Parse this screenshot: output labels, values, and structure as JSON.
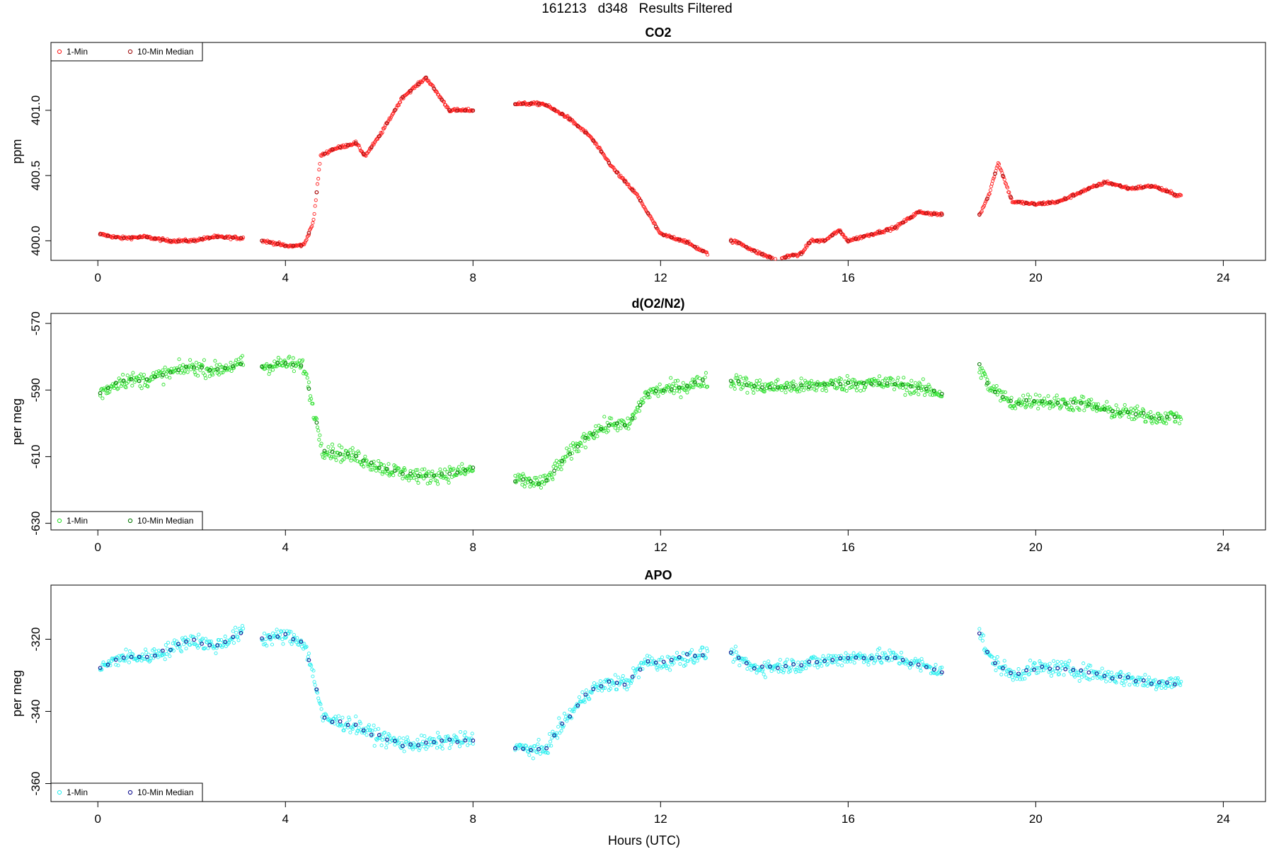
{
  "figure": {
    "title": "161213   d348   Results Filtered",
    "xlabel": "Hours (UTC)"
  },
  "chart_data": [
    {
      "type": "scatter",
      "title": "CO2",
      "ylabel": "ppm",
      "xlim": [
        -1,
        24.9
      ],
      "ylim": [
        399.85,
        401.52
      ],
      "xticks": [
        0,
        4,
        8,
        12,
        16,
        20,
        24
      ],
      "yticks": [
        400.0,
        400.5,
        401.0
      ],
      "ytick_labels": [
        "400.0",
        "400.5",
        "401.0"
      ],
      "legend": {
        "position": "top-left",
        "items": [
          "1-Min",
          "10-Min Median"
        ]
      },
      "colors": {
        "one_min": "#ff2020",
        "median": "#a01010"
      },
      "segments": [
        {
          "x": [
            0.05,
            0.5,
            1.0,
            1.5,
            2.0,
            2.5,
            3.1
          ],
          "y": [
            400.05,
            400.02,
            400.03,
            400.0,
            400.0,
            400.03,
            400.02
          ]
        },
        {
          "x": [
            3.5,
            3.8,
            4.0,
            4.2,
            4.4,
            4.6,
            4.75,
            5.0,
            5.5,
            5.7,
            6.0,
            6.5,
            7.0,
            7.5,
            8.0
          ],
          "y": [
            400.0,
            399.98,
            399.96,
            399.96,
            399.97,
            400.15,
            400.65,
            400.7,
            400.75,
            400.65,
            400.8,
            401.1,
            401.25,
            401.0,
            401.0
          ]
        },
        {
          "x": [
            8.9,
            9.5,
            10.0,
            10.5,
            11.0,
            11.5,
            12.0,
            12.5,
            13.0
          ],
          "y": [
            401.05,
            401.05,
            400.95,
            400.8,
            400.55,
            400.35,
            400.05,
            400.0,
            399.9
          ]
        },
        {
          "x": [
            13.5,
            13.7,
            14.0,
            14.5,
            14.7,
            15.0,
            15.2,
            15.5,
            15.8,
            16.0,
            16.5,
            17.0,
            17.5,
            18.0
          ],
          "y": [
            400.0,
            399.98,
            399.92,
            399.85,
            399.88,
            399.9,
            400.0,
            400.0,
            400.08,
            400.0,
            400.05,
            400.1,
            400.22,
            400.2
          ]
        },
        {
          "x": [
            18.8,
            19.0,
            19.2,
            19.5,
            20.0,
            20.5,
            21.0,
            21.5,
            22.0,
            22.5,
            23.0,
            23.1
          ],
          "y": [
            400.2,
            400.35,
            400.6,
            400.3,
            400.28,
            400.3,
            400.38,
            400.45,
            400.4,
            400.42,
            400.35,
            400.35
          ]
        }
      ]
    },
    {
      "type": "scatter",
      "title": "d(O2/N2)",
      "ylabel": "per meg",
      "xlim": [
        -1,
        24.9
      ],
      "ylim": [
        -632,
        -567
      ],
      "xticks": [
        0,
        4,
        8,
        12,
        16,
        20,
        24
      ],
      "yticks": [
        -630,
        -610,
        -590,
        -570
      ],
      "ytick_labels": [
        "-630",
        "-610",
        "-590",
        "-570"
      ],
      "legend": {
        "position": "bottom-left",
        "items": [
          "1-Min",
          "10-Min Median"
        ]
      },
      "colors": {
        "one_min": "#30e030",
        "median": "#0a7a0a"
      },
      "segments": [
        {
          "x": [
            0.05,
            0.5,
            1.0,
            1.5,
            2.0,
            2.5,
            3.1
          ],
          "y": [
            -591,
            -587,
            -587,
            -585,
            -583,
            -584,
            -582
          ]
        },
        {
          "x": [
            3.5,
            4.0,
            4.4,
            4.6,
            4.8,
            5.5,
            6.0,
            6.5,
            7.0,
            7.5,
            8.0
          ],
          "y": [
            -583,
            -582,
            -583,
            -596,
            -608,
            -610,
            -613,
            -615,
            -616,
            -615,
            -614
          ]
        },
        {
          "x": [
            8.9,
            9.5,
            10.0,
            10.5,
            11.0,
            11.3,
            11.7,
            12.0,
            12.5,
            13.0
          ],
          "y": [
            -617,
            -618,
            -610,
            -603,
            -600,
            -601,
            -591,
            -590,
            -589,
            -587
          ]
        },
        {
          "x": [
            13.5,
            14.0,
            15.0,
            16.0,
            17.0,
            18.0
          ],
          "y": [
            -587,
            -589,
            -589,
            -588,
            -588,
            -591
          ]
        },
        {
          "x": [
            18.8,
            19.0,
            19.5,
            20.0,
            20.5,
            21.0,
            21.5,
            22.0,
            22.5,
            23.0,
            23.1
          ],
          "y": [
            -583,
            -589,
            -594,
            -593,
            -594,
            -594,
            -596,
            -597,
            -598,
            -598,
            -598
          ]
        }
      ]
    },
    {
      "type": "scatter",
      "title": "APO",
      "ylabel": "per meg",
      "xlim": [
        -1,
        24.9
      ],
      "ylim": [
        -365,
        -305
      ],
      "xticks": [
        0,
        4,
        8,
        12,
        16,
        20,
        24
      ],
      "yticks": [
        -360,
        -340,
        -320
      ],
      "ytick_labels": [
        "-360",
        "-340",
        "-320"
      ],
      "legend": {
        "position": "bottom-left",
        "items": [
          "1-Min",
          "10-Min Median"
        ]
      },
      "colors": {
        "one_min": "#30f0f0",
        "median": "#101090"
      },
      "segments": [
        {
          "x": [
            0.05,
            0.5,
            1.0,
            1.5,
            2.0,
            2.5,
            3.1
          ],
          "y": [
            -328,
            -325,
            -325,
            -323,
            -320,
            -322,
            -318
          ]
        },
        {
          "x": [
            3.5,
            4.0,
            4.4,
            4.6,
            4.8,
            5.5,
            6.0,
            6.5,
            7.0,
            7.5,
            8.0
          ],
          "y": [
            -320,
            -319,
            -321,
            -330,
            -342,
            -344,
            -347,
            -349,
            -349,
            -348,
            -348
          ]
        },
        {
          "x": [
            8.9,
            9.5,
            10.0,
            10.5,
            11.0,
            11.3,
            11.7,
            12.0,
            12.5,
            13.0
          ],
          "y": [
            -350,
            -351,
            -342,
            -334,
            -332,
            -332,
            -326,
            -327,
            -325,
            -324
          ]
        },
        {
          "x": [
            13.5,
            14.0,
            15.0,
            16.0,
            17.0,
            18.0
          ],
          "y": [
            -324,
            -328,
            -327,
            -325,
            -325,
            -329
          ]
        },
        {
          "x": [
            18.8,
            19.0,
            19.5,
            20.0,
            20.5,
            21.0,
            21.5,
            22.0,
            22.5,
            23.0,
            23.1
          ],
          "y": [
            -318,
            -325,
            -330,
            -328,
            -328,
            -329,
            -330,
            -331,
            -332,
            -332,
            -332
          ]
        }
      ]
    }
  ]
}
